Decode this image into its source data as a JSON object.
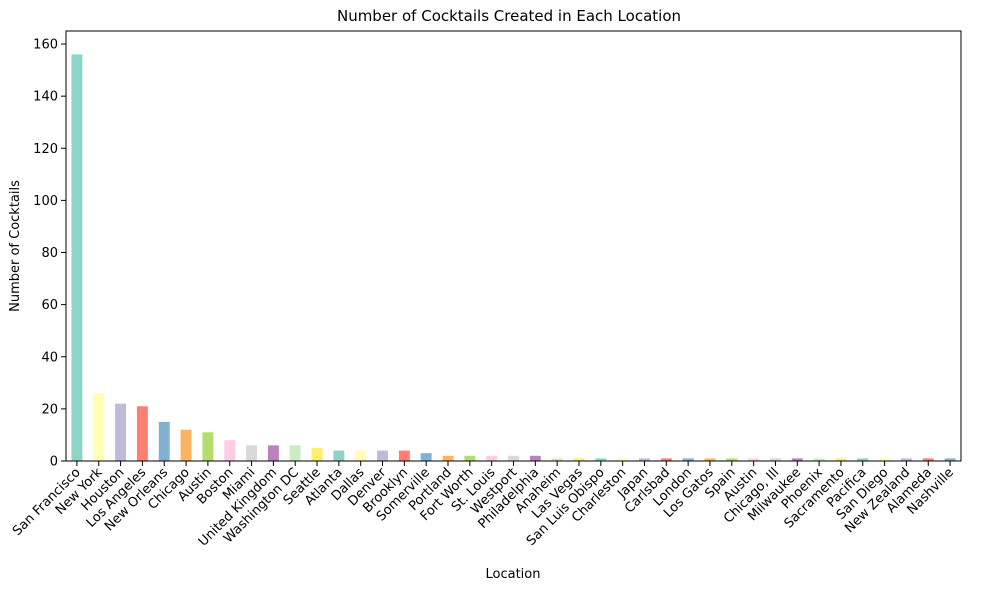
{
  "chart_data": {
    "type": "bar",
    "title": "Number of Cocktails Created in Each Location",
    "xlabel": "Location",
    "ylabel": "Number of Cocktails",
    "ylim": [
      0,
      165
    ],
    "yticks": [
      0,
      20,
      40,
      60,
      80,
      100,
      120,
      140,
      160
    ],
    "grid": false,
    "legend": "none",
    "categories": [
      "San Francisco",
      "New York",
      "Houston",
      "Los Angeles",
      "New Orleans",
      "Chicago",
      "Austin",
      "Boston",
      "Miami",
      "United Kingdom",
      "Washington DC",
      "Seattle",
      "Atlanta",
      "Dallas",
      "Denver",
      "Brooklyn",
      "Somerville",
      "Portland",
      "Fort Worth",
      "St. Louis",
      "Westport",
      "Philadelphia",
      "Anaheim",
      "Las Vegas",
      "San Luis Obispo",
      "Charleston",
      "Japan",
      "Carlsbad",
      "London",
      "Los Gatos",
      "Spain",
      "Austin",
      "Chicago, Ill",
      "Milwaukee",
      "Phoenix",
      "Sacramento",
      "Pacifica",
      "San Diego",
      "New Zealand",
      "Alameda",
      "Nashville"
    ],
    "values": [
      156,
      26,
      22,
      21,
      15,
      12,
      11,
      8,
      6,
      6,
      6,
      5,
      4,
      4,
      4,
      4,
      3,
      2,
      2,
      2,
      2,
      2,
      1,
      1,
      1,
      1,
      1,
      1,
      1,
      1,
      1,
      1,
      1,
      1,
      1,
      1,
      1,
      1,
      1,
      1,
      1
    ],
    "colors": [
      "#8dd3c7",
      "#ffffb3",
      "#bebada",
      "#fb8072",
      "#80b1d3",
      "#fdb462",
      "#b3de69",
      "#fccde5",
      "#d9d9d9",
      "#bc80bd",
      "#ccebc5",
      "#ffed6f"
    ]
  }
}
